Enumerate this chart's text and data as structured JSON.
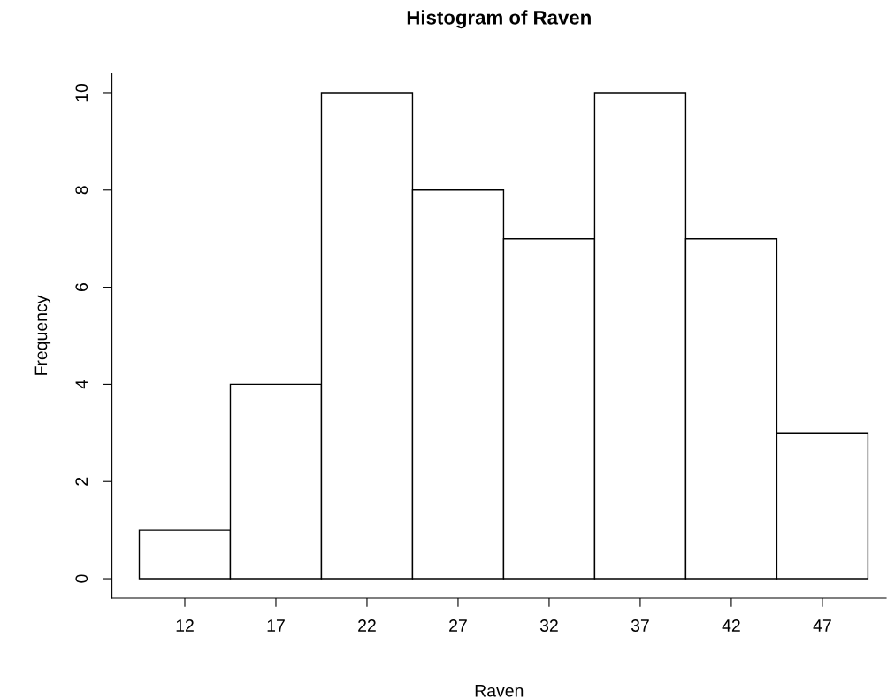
{
  "chart_data": {
    "type": "histogram",
    "title": "Histogram of Raven",
    "xlabel": "Raven",
    "ylabel": "Frequency",
    "bins": [
      9.5,
      14.5,
      19.5,
      24.5,
      29.5,
      34.5,
      39.5,
      44.5,
      49.5
    ],
    "values": [
      1,
      4,
      10,
      8,
      7,
      10,
      7,
      3
    ],
    "color": "#ffffff",
    "xlim": [
      8,
      50.5
    ],
    "ylim": [
      -0.4,
      10.4
    ],
    "xticks": [
      12,
      17,
      22,
      27,
      32,
      37,
      42,
      47
    ],
    "yticks": [
      0,
      2,
      4,
      6,
      8,
      10
    ],
    "grid": false
  }
}
